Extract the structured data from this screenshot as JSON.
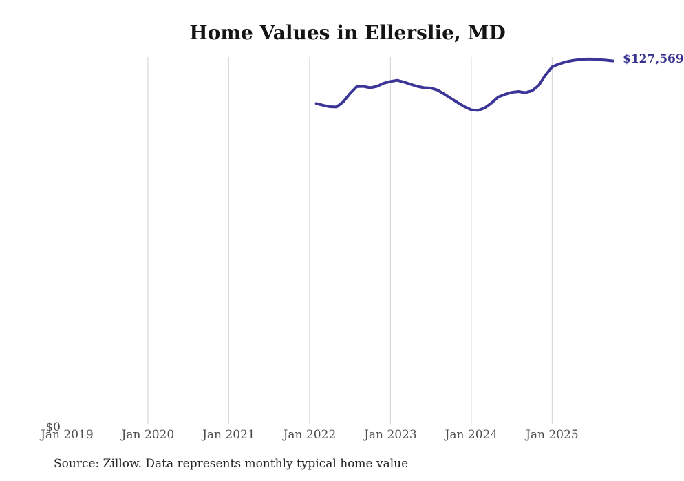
{
  "title": "Home Values in Ellerslie, MD",
  "source_note": "Source: Zillow. Data represents monthly typical home value",
  "end_label": "$127,569",
  "y_zero_label": "$0",
  "colors": {
    "line": "#3a3596",
    "end_label": "#35318f",
    "gridline": "#d9d9d9",
    "title_text": "#141414",
    "axis_text": "#4d4d4d",
    "source_text": "#262626"
  },
  "x_axis": {
    "tick_labels": [
      "Jan 2019",
      "Jan 2020",
      "Jan 2021",
      "Jan 2022",
      "Jan 2023",
      "Jan 2024",
      "Jan 2025"
    ],
    "gridline_labels": [
      "Jan 2020",
      "Jan 2021",
      "Jan 2022",
      "Jan 2023",
      "Jan 2024",
      "Jan 2025"
    ]
  },
  "chart_data": {
    "type": "line",
    "title": "Home Values in Ellerslie, MD",
    "series_name": "Monthly typical home value",
    "unit": "USD",
    "ylim": [
      0,
      129000
    ],
    "grid": "vertical-only",
    "legend": "none",
    "x": [
      "Jan 2022",
      "Feb 2022",
      "Mar 2022",
      "Apr 2022",
      "May 2022",
      "Jun 2022",
      "Jul 2022",
      "Aug 2022",
      "Sep 2022",
      "Oct 2022",
      "Nov 2022",
      "Dec 2022",
      "Jan 2023",
      "Feb 2023",
      "Mar 2023",
      "Apr 2023",
      "May 2023",
      "Jun 2023",
      "Jul 2023",
      "Aug 2023",
      "Sep 2023",
      "Oct 2023",
      "Nov 2023",
      "Dec 2023",
      "Jan 2024",
      "Feb 2024",
      "Mar 2024",
      "Apr 2024",
      "May 2024",
      "Jun 2024",
      "Jul 2024",
      "Aug 2024",
      "Sep 2024",
      "Oct 2024",
      "Nov 2024",
      "Dec 2024",
      "Jan 2025",
      "Feb 2025",
      "Mar 2025",
      "Apr 2025",
      "May 2025",
      "Jun 2025",
      "Jul 2025",
      "Aug 2025",
      "Sep 2025"
    ],
    "values": [
      112700,
      112100,
      111600,
      111500,
      113300,
      116200,
      118600,
      118700,
      118200,
      118700,
      119800,
      120400,
      120800,
      120200,
      119400,
      118700,
      118200,
      118100,
      117400,
      116000,
      114500,
      113000,
      111600,
      110500,
      110300,
      111200,
      112900,
      115000,
      115900,
      116600,
      116900,
      116500,
      117100,
      119000,
      122600,
      125500,
      126500,
      127200,
      127700,
      128000,
      128200,
      128200,
      128000,
      127800,
      127569
    ],
    "last_value_label": "$127,569"
  }
}
